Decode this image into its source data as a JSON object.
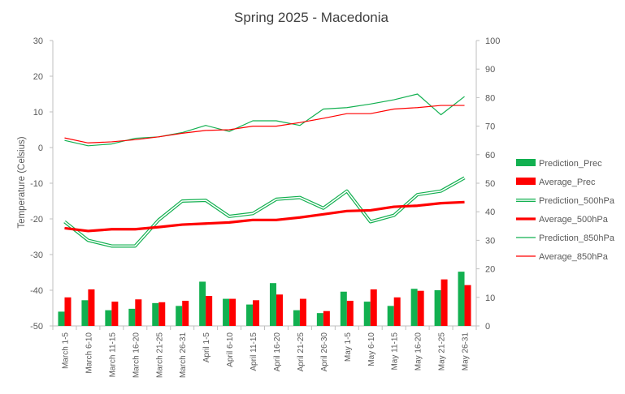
{
  "chart_data": {
    "type": "bar",
    "title": "Spring 2025 - Macedonia",
    "ylabel": "Temperature (Celsius)",
    "y2label": "",
    "ylim": [
      -50,
      30
    ],
    "yticks": [
      30,
      20,
      10,
      0,
      -10,
      -20,
      -30,
      -40,
      -50
    ],
    "y2lim": [
      0,
      100
    ],
    "y2ticks": [
      100,
      90,
      80,
      70,
      60,
      50,
      40,
      30,
      20,
      10,
      0
    ],
    "categories": [
      "March 1-5",
      "March 6-10",
      "March 11-15",
      "March 16-20",
      "March 21-25",
      "March 26-31",
      "April 1-5",
      "April 6-10",
      "April 11-15",
      "April 16-20",
      "April 21-25",
      "April 26-30",
      "May 1-5",
      "May 6-10",
      "May 11-15",
      "May 16-20",
      "May 21-25",
      "May 26-31"
    ],
    "legend_position": "right",
    "series": [
      {
        "name": "Prediction_Prec",
        "kind": "bar",
        "axis": "right",
        "color": "#12b050",
        "values": [
          5,
          9,
          5.5,
          6,
          8,
          7,
          15.5,
          9.5,
          7.5,
          15,
          5.5,
          4.5,
          12,
          8.5,
          7,
          13,
          12.5,
          19
        ]
      },
      {
        "name": "Average_Prec",
        "kind": "bar",
        "axis": "right",
        "color": "#ff0000",
        "values": [
          10,
          12.8,
          8.5,
          9.3,
          8.3,
          8.8,
          10.5,
          9.5,
          9,
          11,
          9.5,
          5.2,
          8.8,
          12.8,
          10,
          12.3,
          16.3,
          14.3
        ]
      },
      {
        "name": "Prediction_500hPa",
        "kind": "double-line",
        "axis": "left",
        "color": "#12b050",
        "values": [
          -20.8,
          -26,
          -27.6,
          -27.6,
          -20.3,
          -15,
          -14.8,
          -19.3,
          -18.5,
          -14.5,
          -14,
          -17,
          -12.2,
          -20.8,
          -19,
          -13.2,
          -12.2,
          -8.5
        ]
      },
      {
        "name": "Average_500hPa",
        "kind": "thick-line",
        "axis": "left",
        "color": "#ff0000",
        "values": [
          -22.6,
          -23.4,
          -22.9,
          -22.9,
          -22.3,
          -21.6,
          -21.3,
          -21,
          -20.3,
          -20.3,
          -19.6,
          -18.7,
          -17.8,
          -17.6,
          -16.6,
          -16.3,
          -15.6,
          -15.3
        ]
      },
      {
        "name": "Prediction_850hPa",
        "kind": "line",
        "axis": "left",
        "color": "#12b050",
        "values": [
          2,
          0.5,
          1,
          2.6,
          3,
          4.2,
          6.2,
          4.5,
          7.5,
          7.5,
          6.2,
          10.8,
          11.2,
          12.2,
          13.4,
          15,
          9.2,
          14.3
        ]
      },
      {
        "name": "Average_850hPa",
        "kind": "line",
        "axis": "left",
        "color": "#ff0000",
        "values": [
          2.7,
          1.3,
          1.6,
          2.2,
          3,
          4,
          4.8,
          5,
          6,
          6,
          7,
          8.2,
          9.5,
          9.5,
          10.8,
          11.2,
          11.8,
          11.8
        ]
      }
    ]
  }
}
